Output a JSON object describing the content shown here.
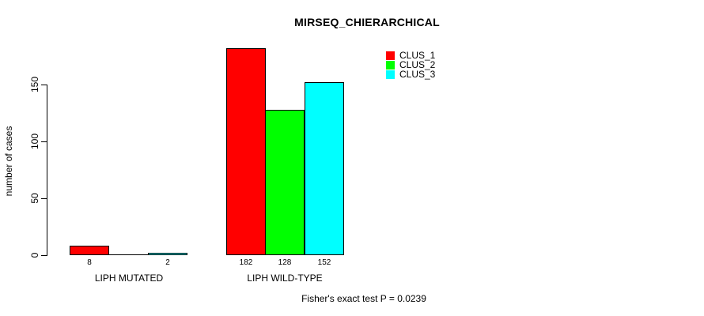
{
  "chart_data": {
    "type": "bar",
    "title": "MIRSEQ_CHIERARCHICAL",
    "ylabel": "number of cases",
    "xlabel": "",
    "categories": [
      "LIPH MUTATED",
      "LIPH WILD-TYPE"
    ],
    "series": [
      {
        "name": "CLUS_1",
        "color": "#ff0000",
        "values": [
          8,
          182
        ]
      },
      {
        "name": "CLUS_2",
        "color": "#00ff00",
        "values": [
          0,
          128
        ]
      },
      {
        "name": "CLUS_3",
        "color": "#00ffff",
        "values": [
          2,
          152
        ]
      }
    ],
    "bar_value_labels": [
      [
        "8",
        "",
        "2"
      ],
      [
        "182",
        "128",
        "152"
      ]
    ],
    "yticks": [
      0,
      50,
      100,
      150
    ],
    "ylim": [
      0,
      185
    ],
    "grid": false,
    "legend_position": "top-right",
    "bar_border_color": "#000000",
    "annotation": "Fisher's exact test P = 0.0239"
  }
}
